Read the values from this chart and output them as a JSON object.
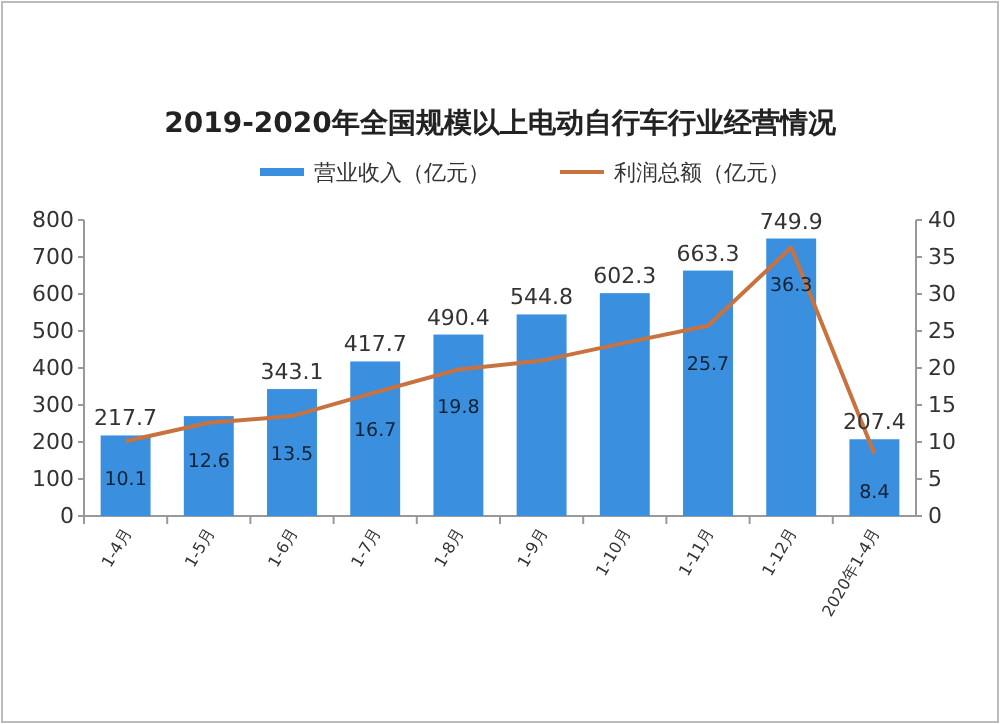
{
  "chart_data": {
    "type": "bar",
    "title": "2019-2020年全国规模以上电动自行车行业经营情况",
    "categories": [
      "1-4月",
      "1-5月",
      "1-6月",
      "1-7月",
      "1-8月",
      "1-9月",
      "1-10月",
      "1-11月",
      "1-12月",
      "2020年1-4月"
    ],
    "series": [
      {
        "name": "营业收入（亿元）",
        "color": "#3b8fdf",
        "values": [
          217.7,
          270,
          343.1,
          417.7,
          490.4,
          544.8,
          602.3,
          663.3,
          749.9,
          207.4
        ],
        "value_labels": [
          "217.7",
          null,
          "343.1",
          "417.7",
          "490.4",
          "544.8",
          "602.3",
          "663.3",
          "749.9",
          "207.4"
        ]
      },
      {
        "name": "利润总额（亿元）",
        "type": "line",
        "axis": "y2",
        "color": "#c8733f",
        "values": [
          10.1,
          12.6,
          13.5,
          16.7,
          19.8,
          21,
          23.4,
          25.7,
          36.3,
          8.4
        ],
        "value_labels": [
          "10.1",
          "12.6",
          "13.5",
          "16.7",
          "19.8",
          null,
          null,
          "25.7",
          "36.3",
          "8.4"
        ]
      }
    ],
    "ylim": [
      0,
      800
    ],
    "yticks": [
      0,
      100,
      200,
      300,
      400,
      500,
      600,
      700,
      800
    ],
    "y2lim": [
      0,
      40
    ],
    "y2ticks": [
      0,
      5,
      10,
      15,
      20,
      25,
      30,
      35,
      40
    ],
    "legend": "top"
  }
}
